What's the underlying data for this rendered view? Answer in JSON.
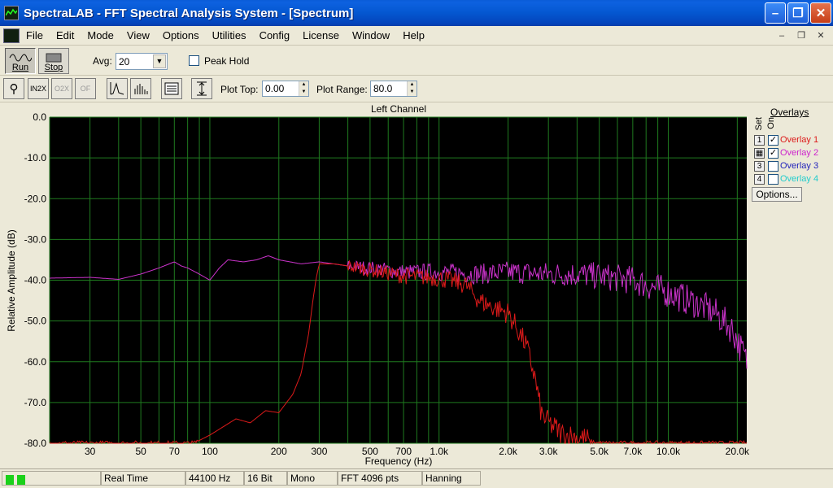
{
  "window": {
    "title": "SpectraLAB - FFT Spectral Analysis System - [Spectrum]"
  },
  "menu": [
    "File",
    "Edit",
    "Mode",
    "View",
    "Options",
    "Utilities",
    "Config",
    "License",
    "Window",
    "Help"
  ],
  "toolbar": {
    "run_label": "Run",
    "stop_label": "Stop",
    "avg_label": "Avg:",
    "avg_value": "20",
    "peak_hold_label": "Peak Hold",
    "plot_top_label": "Plot Top:",
    "plot_top_value": "0.00",
    "plot_range_label": "Plot Range:",
    "plot_range_value": "80.0"
  },
  "overlays": {
    "title": "Overlays",
    "set_label": "Set",
    "on_label": "On",
    "options_label": "Options...",
    "items": [
      {
        "set": "1",
        "name": "Overlay 1",
        "on": true,
        "color": "#dd1a1a"
      },
      {
        "set": "",
        "name": "Overlay 2",
        "on": true,
        "color": "#cc22cc"
      },
      {
        "set": "3",
        "name": "Overlay 3",
        "on": false,
        "color": "#2222bb"
      },
      {
        "set": "4",
        "name": "Overlay 4",
        "on": false,
        "color": "#22cccc"
      }
    ]
  },
  "status": {
    "mode": "Real Time",
    "sample_rate": "44100 Hz",
    "bits": "16 Bit",
    "channels": "Mono",
    "fft": "FFT 4096 pts",
    "window": "Hanning"
  },
  "chart_data": {
    "type": "line",
    "title": "Left Channel",
    "xlabel": "Frequency (Hz)",
    "ylabel": "Relative Amplitude (dB)",
    "x_scale": "log",
    "xlim": [
      20,
      22000
    ],
    "ylim": [
      -80,
      0
    ],
    "grid": true,
    "y_ticks": [
      0,
      -10,
      -20,
      -30,
      -40,
      -50,
      -60,
      -70,
      -80
    ],
    "y_tick_labels": [
      "0.0",
      "-10.0",
      "-20.0",
      "-30.0",
      "-40.0",
      "-50.0",
      "-60.0",
      "-70.0",
      "-80.0"
    ],
    "x_ticks": [
      30,
      50,
      70,
      100,
      200,
      300,
      500,
      700,
      1000,
      2000,
      3000,
      5000,
      7000,
      10000,
      20000
    ],
    "x_tick_labels": [
      "30",
      "50",
      "70",
      "100",
      "200",
      "300",
      "500",
      "700",
      "1.0k",
      "2.0k",
      "3.0k",
      "5.0k",
      "7.0k",
      "10.0k",
      "20.0k"
    ],
    "series": [
      {
        "name": "Overlay 2",
        "color": "#cc33cc",
        "x": [
          20,
          30,
          40,
          50,
          60,
          70,
          75,
          80,
          90,
          100,
          110,
          120,
          140,
          160,
          180,
          200,
          250,
          300,
          400,
          500,
          700,
          1000,
          1500,
          2000,
          3000,
          4000,
          5000,
          7000,
          10000,
          13000,
          16000,
          19000,
          22000
        ],
        "y": [
          -39.5,
          -39.3,
          -39.8,
          -38.5,
          -37,
          -35.5,
          -36.5,
          -37,
          -38.5,
          -40,
          -37,
          -35,
          -35.5,
          -35,
          -34,
          -35,
          -36,
          -35.5,
          -36.5,
          -37,
          -38,
          -38,
          -38.5,
          -38,
          -38.5,
          -38.5,
          -39,
          -40,
          -43,
          -45.5,
          -48,
          -52,
          -60
        ]
      },
      {
        "name": "Overlay 1",
        "color": "#dd1a1a",
        "x": [
          20,
          85,
          100,
          130,
          150,
          175,
          200,
          230,
          250,
          270,
          280,
          290,
          300,
          350,
          400,
          500,
          700,
          1000,
          1300,
          1500,
          1700,
          2000,
          2200,
          2400,
          2600,
          2800,
          3000,
          3500,
          4000,
          4500,
          5000,
          22000
        ],
        "y": [
          -80,
          -80,
          -78,
          -74,
          -75,
          -72,
          -72.5,
          -68,
          -63,
          -53,
          -46,
          -40,
          -36,
          -36,
          -36.5,
          -37.5,
          -39,
          -39.5,
          -41,
          -45,
          -46.5,
          -48,
          -52,
          -56,
          -63,
          -73,
          -75,
          -78,
          -78.5,
          -79.5,
          -80,
          -80
        ]
      }
    ]
  }
}
